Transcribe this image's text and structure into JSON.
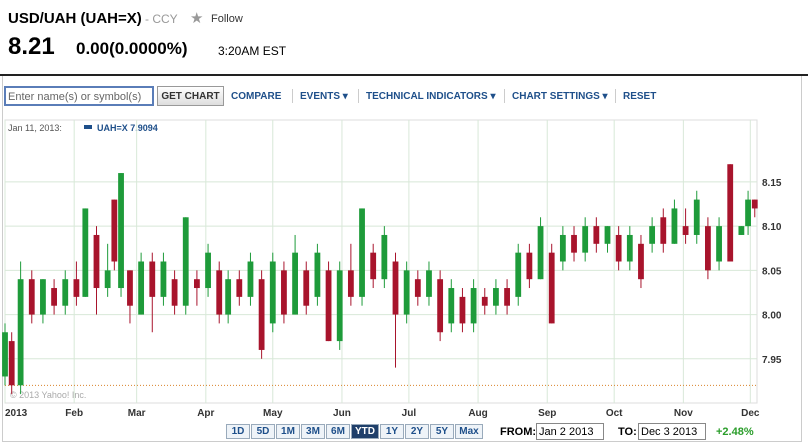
{
  "header": {
    "symbol": "USD/UAH (UAH=X)",
    "exchange": "- CCY",
    "follow": "Follow",
    "price": "8.21",
    "change": "0.00(0.0000%)",
    "time": "3:20AM EST"
  },
  "toolbar": {
    "input_placeholder": "Enter name(s) or symbol(s)",
    "button": "GET CHART",
    "links": [
      "COMPARE",
      "EVENTS ▾",
      "TECHNICAL INDICATORS ▾",
      "CHART SETTINGS ▾",
      "RESET"
    ]
  },
  "chart_data": {
    "type": "candlestick",
    "legend_date": "Jan 11, 2013:",
    "legend_label": "UAH=X 7.9094",
    "watermark": "© 2013 Yahoo! Inc.",
    "up_color": "#1e9b3a",
    "down_color": "#a8142c",
    "grid": true,
    "reference_line": 7.92,
    "x": [
      1,
      4,
      8,
      13,
      18,
      23,
      28,
      33,
      37,
      42,
      47,
      50,
      53,
      57,
      62,
      67,
      72,
      77,
      82,
      87,
      92,
      97,
      101,
      106,
      111,
      116,
      121,
      126,
      131,
      136,
      141,
      146,
      151,
      156,
      161,
      166,
      171,
      176,
      181,
      186,
      191,
      196,
      201,
      206,
      211,
      216,
      221,
      226,
      231,
      236,
      241,
      246,
      251,
      256,
      261,
      266,
      271,
      276,
      281,
      286,
      291,
      296,
      301,
      306,
      311,
      316,
      321,
      326,
      331,
      334,
      337
    ],
    "open": [
      7.93,
      7.97,
      7.92,
      8.04,
      8.0,
      8.03,
      8.01,
      8.04,
      8.02,
      8.09,
      8.03,
      8.13,
      8.03,
      8.05,
      8.0,
      8.06,
      8.02,
      8.04,
      8.01,
      8.04,
      8.03,
      8.05,
      8.0,
      8.04,
      8.02,
      8.04,
      7.99,
      8.05,
      8.0,
      8.05,
      8.02,
      8.05,
      7.97,
      8.05,
      8.02,
      8.07,
      8.04,
      8.06,
      8.0,
      8.04,
      8.02,
      8.04,
      7.99,
      8.02,
      7.99,
      8.02,
      8.01,
      8.03,
      8.02,
      8.07,
      8.04,
      8.07,
      8.06,
      8.09,
      8.07,
      8.1,
      8.08,
      8.09,
      8.06,
      8.08,
      8.08,
      8.11,
      8.08,
      8.1,
      8.09,
      8.1,
      8.06,
      8.17,
      8.09,
      8.1,
      8.13
    ],
    "high": [
      7.99,
      7.98,
      8.06,
      8.05,
      8.04,
      8.04,
      8.05,
      8.06,
      8.12,
      8.1,
      8.08,
      8.13,
      8.16,
      8.05,
      8.07,
      8.07,
      8.07,
      8.05,
      8.11,
      8.05,
      8.08,
      8.06,
      8.05,
      8.05,
      8.07,
      8.05,
      8.07,
      8.06,
      8.09,
      8.06,
      8.08,
      8.06,
      8.06,
      8.08,
      8.12,
      8.08,
      8.1,
      8.07,
      8.06,
      8.05,
      8.06,
      8.05,
      8.04,
      8.03,
      8.04,
      8.03,
      8.04,
      8.04,
      8.08,
      8.08,
      8.11,
      8.08,
      8.1,
      8.1,
      8.11,
      8.11,
      8.1,
      8.1,
      8.1,
      8.09,
      8.11,
      8.12,
      8.13,
      8.12,
      8.14,
      8.11,
      8.11,
      8.17,
      8.1,
      8.14,
      8.13
    ],
    "low": [
      7.92,
      7.91,
      7.91,
      7.99,
      7.99,
      8.0,
      8.0,
      8.01,
      8.02,
      8.0,
      8.02,
      8.05,
      8.02,
      7.99,
      8.0,
      7.98,
      8.01,
      8.0,
      8.0,
      8.01,
      8.02,
      7.99,
      7.99,
      8.01,
      8.01,
      7.95,
      7.98,
      7.99,
      8.0,
      8.0,
      8.01,
      7.97,
      7.96,
      8.01,
      8.01,
      8.03,
      8.03,
      7.94,
      7.99,
      8.01,
      8.01,
      7.97,
      7.98,
      7.98,
      7.98,
      8.0,
      8.0,
      8.0,
      8.01,
      8.03,
      8.04,
      7.99,
      8.05,
      8.06,
      8.06,
      8.07,
      8.07,
      8.05,
      8.05,
      8.03,
      8.07,
      8.07,
      8.08,
      8.08,
      8.08,
      8.04,
      8.05,
      8.06,
      8.09,
      8.09,
      8.11
    ],
    "close": [
      7.98,
      7.92,
      8.04,
      8.0,
      8.04,
      8.01,
      8.04,
      8.02,
      8.12,
      8.03,
      8.05,
      8.06,
      8.16,
      8.01,
      8.06,
      8.02,
      8.06,
      8.01,
      8.11,
      8.03,
      8.07,
      8.0,
      8.04,
      8.02,
      8.06,
      7.96,
      8.06,
      8.0,
      8.07,
      8.01,
      8.07,
      7.97,
      8.05,
      8.02,
      8.12,
      8.04,
      8.09,
      8.0,
      8.05,
      8.02,
      8.05,
      7.98,
      8.03,
      7.99,
      8.03,
      8.01,
      8.03,
      8.01,
      8.07,
      8.04,
      8.1,
      7.99,
      8.09,
      8.07,
      8.1,
      8.08,
      8.1,
      8.06,
      8.09,
      8.04,
      8.1,
      8.08,
      8.12,
      8.09,
      8.13,
      8.05,
      8.1,
      8.06,
      8.1,
      8.13,
      8.12
    ],
    "xlim": [
      1,
      338
    ],
    "xticks": [
      {
        "value": 1,
        "label": "2013"
      },
      {
        "value": 32,
        "label": "Feb"
      },
      {
        "value": 60,
        "label": "Mar"
      },
      {
        "value": 91,
        "label": "Apr"
      },
      {
        "value": 121,
        "label": "May"
      },
      {
        "value": 152,
        "label": "Jun"
      },
      {
        "value": 182,
        "label": "Jul"
      },
      {
        "value": 213,
        "label": "Aug"
      },
      {
        "value": 244,
        "label": "Sep"
      },
      {
        "value": 274,
        "label": "Oct"
      },
      {
        "value": 305,
        "label": "Nov"
      },
      {
        "value": 335,
        "label": "Dec"
      }
    ],
    "ylim": [
      7.9,
      8.22
    ],
    "yticks": [
      7.95,
      {
        "value": 8.0,
        "label": "8.00"
      },
      8.05,
      {
        "value": 8.1,
        "label": "8.10"
      },
      8.15
    ]
  },
  "footer": {
    "ranges": [
      "1D",
      "5D",
      "1M",
      "3M",
      "6M",
      "YTD",
      "1Y",
      "2Y",
      "5Y",
      "Max"
    ],
    "selected": 5,
    "from_label": "FROM:",
    "from": "Jan 2 2013",
    "to_label": "TO:",
    "to": "Dec 3 2013",
    "change": "+2.48%"
  }
}
